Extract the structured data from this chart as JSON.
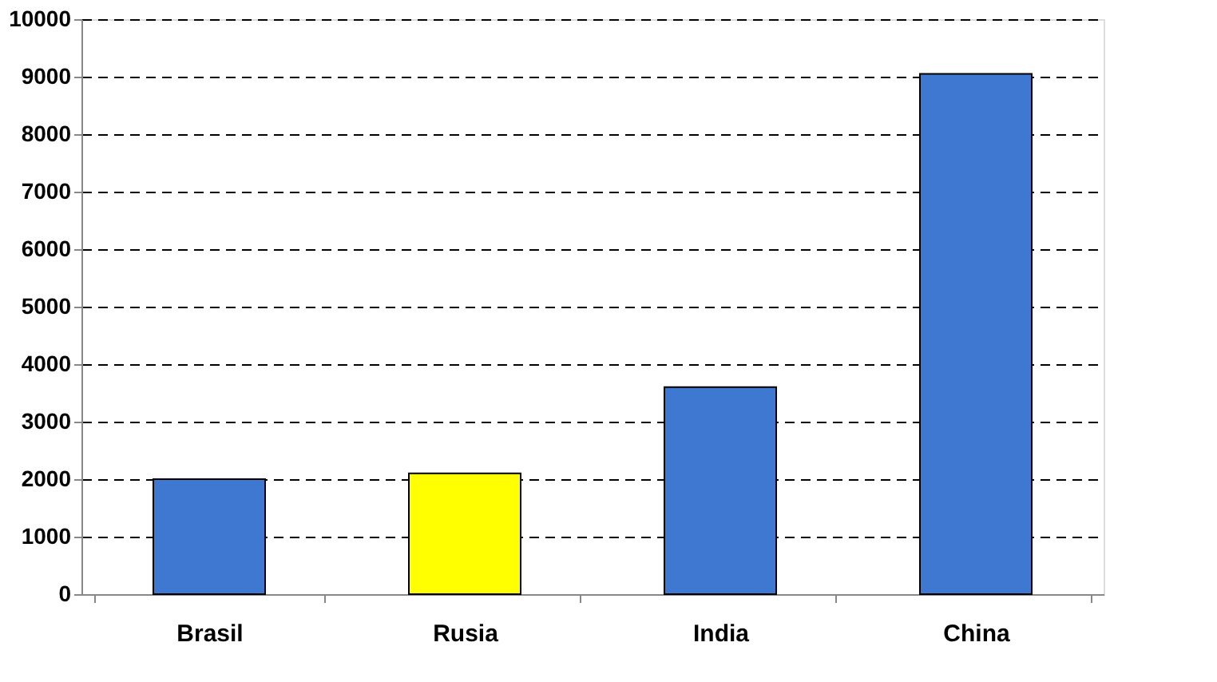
{
  "chart_data": {
    "type": "bar",
    "categories": [
      "Brasil",
      "Rusia",
      "India",
      "China"
    ],
    "values": [
      2000,
      2100,
      3600,
      9050
    ],
    "colors": [
      "#3f78d0",
      "#ffff00",
      "#3f78d0",
      "#3f78d0"
    ],
    "ylim": [
      0,
      10000
    ],
    "yticks": [
      0,
      1000,
      2000,
      3000,
      4000,
      5000,
      6000,
      7000,
      8000,
      9000,
      10000
    ],
    "grid": "y"
  }
}
